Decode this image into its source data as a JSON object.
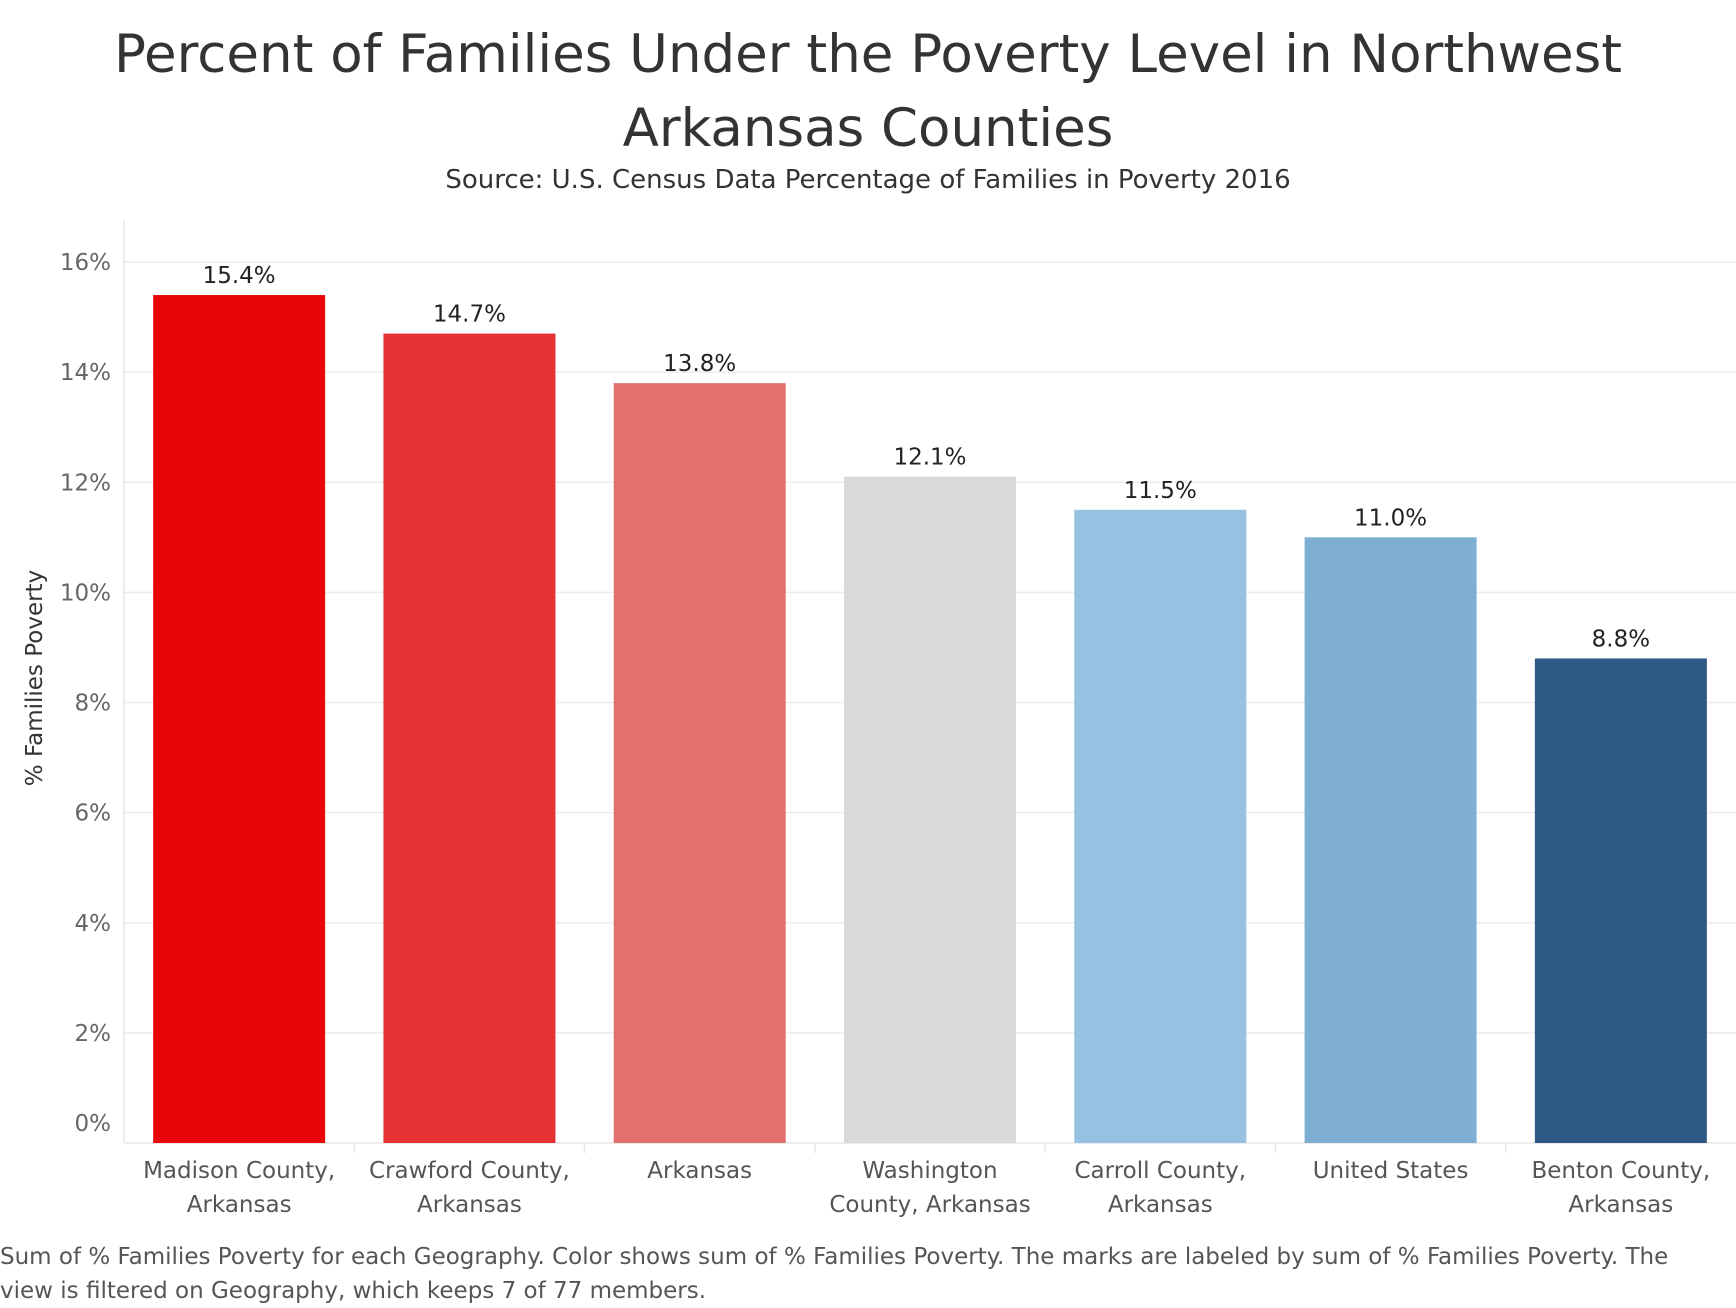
{
  "chart_data": {
    "type": "bar",
    "title": "Percent of Families Under the Poverty Level in Northwest Arkansas Counties",
    "subtitle": "Source: U.S. Census Data Percentage of Families in Poverty 2016",
    "xlabel": "",
    "ylabel": "% Families Poverty",
    "ylim": [
      0,
      16
    ],
    "yticks": [
      "0%",
      "2%",
      "4%",
      "6%",
      "8%",
      "10%",
      "12%",
      "14%",
      "16%"
    ],
    "grid": true,
    "categories": [
      [
        "Madison County,",
        "Arkansas"
      ],
      [
        "Crawford County,",
        "Arkansas"
      ],
      [
        "Arkansas"
      ],
      [
        "Washington",
        "County, Arkansas"
      ],
      [
        "Carroll County,",
        "Arkansas"
      ],
      [
        "United States"
      ],
      [
        "Benton County,",
        "Arkansas"
      ]
    ],
    "values": [
      15.4,
      14.7,
      13.8,
      12.1,
      11.5,
      11.0,
      8.8
    ],
    "labels": [
      "15.4%",
      "14.7%",
      "13.8%",
      "12.1%",
      "11.5%",
      "11.0%",
      "8.8%"
    ],
    "colors": [
      "#e8060a",
      "#e73234",
      "#e3706f",
      "#d9d9d9",
      "#96c1e1",
      "#7faed3",
      "#2e5985"
    ],
    "footnote": "Sum of % Families Poverty for each Geography.  Color shows sum of % Families Poverty.  The marks are labeled by sum of % Families Poverty. The view is filtered on Geography, which keeps 7 of 77 members."
  }
}
